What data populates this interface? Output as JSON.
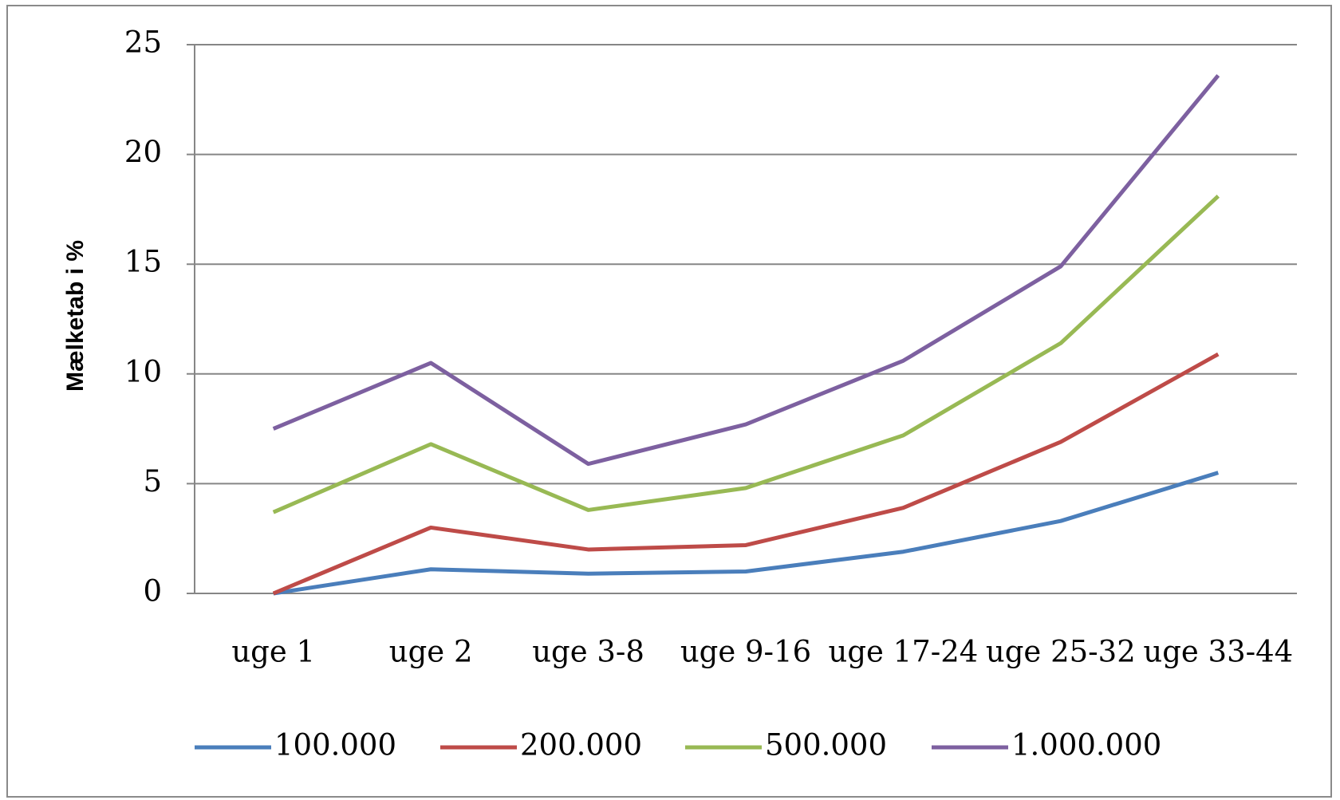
{
  "chart_data": {
    "type": "line",
    "y_label": "Mælketab i %",
    "categories": [
      "uge 1",
      "uge 2",
      "uge 3-8",
      "uge 9-16",
      "uge 17-24",
      "uge 25-32",
      "uge 33-44"
    ],
    "series": [
      {
        "name": "100.000",
        "color": "#4a7ebb",
        "values": [
          0,
          1.1,
          0.9,
          1.0,
          1.9,
          3.3,
          5.5
        ]
      },
      {
        "name": "200.000",
        "color": "#be4b48",
        "values": [
          0,
          3.0,
          2.0,
          2.2,
          3.9,
          6.9,
          10.9
        ]
      },
      {
        "name": "500.000",
        "color": "#98b954",
        "values": [
          3.7,
          6.8,
          3.8,
          4.8,
          7.2,
          11.4,
          18.1
        ]
      },
      {
        "name": "1.000.000",
        "color": "#7d60a0",
        "values": [
          7.5,
          10.5,
          5.9,
          7.7,
          10.6,
          14.9,
          23.6
        ]
      }
    ],
    "ylim": [
      0,
      25
    ],
    "yticks": [
      0,
      5,
      10,
      15,
      20,
      25
    ],
    "grid": true,
    "legend": "bottom"
  }
}
